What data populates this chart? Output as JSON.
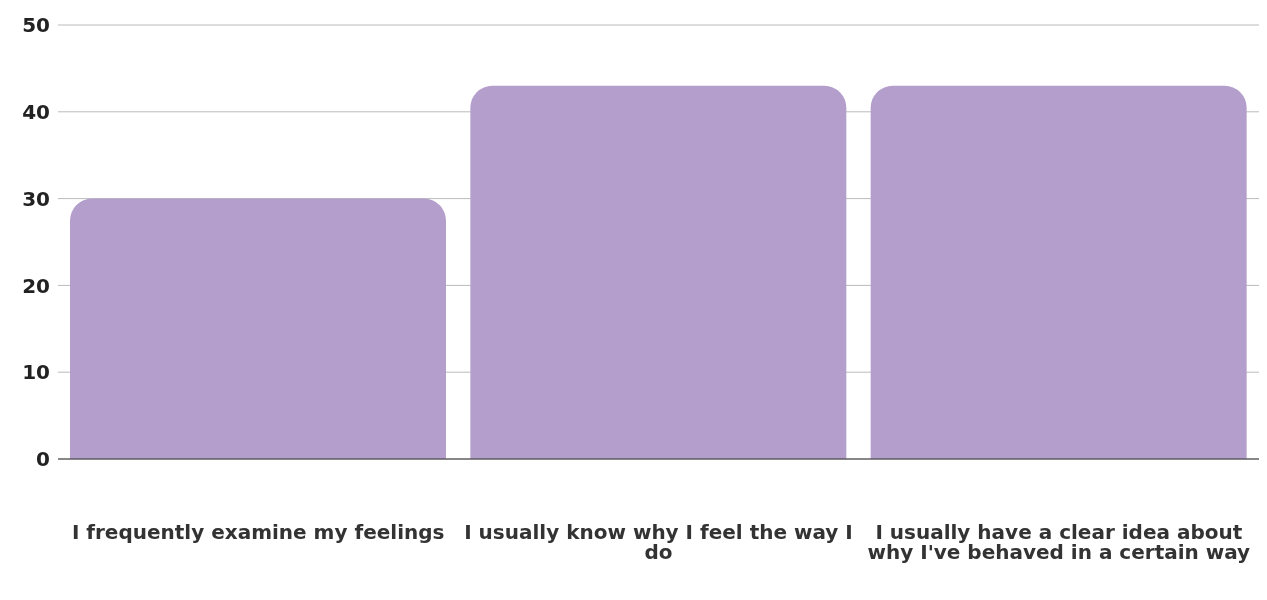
{
  "chart_data": {
    "type": "bar",
    "categories": [
      "I frequently examine my feelings",
      "I usually know why I feel the way I do",
      "I usually have a clear idea about why I've behaved in a certain way"
    ],
    "values": [
      30,
      43,
      43
    ],
    "color": "#b49fcc",
    "ylim": [
      0,
      50
    ],
    "yticks": [
      0,
      10,
      20,
      30,
      40,
      50
    ],
    "grid": "y",
    "legend": false
  }
}
